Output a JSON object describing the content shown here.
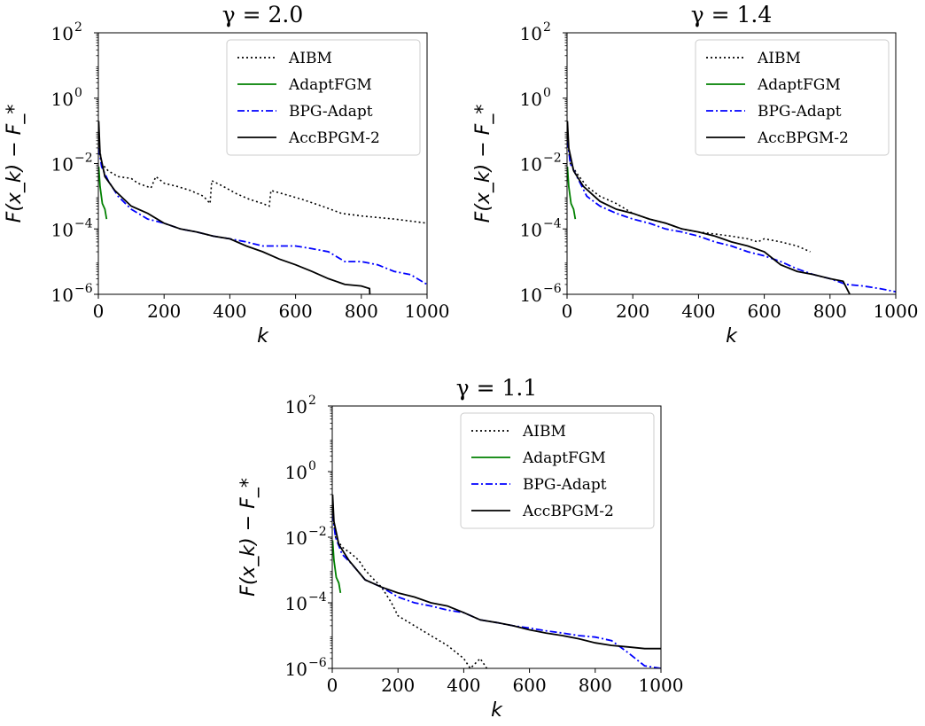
{
  "chart_data": [
    {
      "type": "line",
      "title": "γ = 2.0",
      "xlabel": "k",
      "ylabel": "F(x_k) − F_*",
      "xlim": [
        0,
        1000
      ],
      "ylim": [
        1e-06,
        100
      ],
      "yscale": "log",
      "x_ticks": [
        "0",
        "200",
        "400",
        "600",
        "800",
        "1000"
      ],
      "y_ticks": [
        {
          "base": "10",
          "exp": "2"
        },
        {
          "base": "10",
          "exp": "0"
        },
        {
          "base": "10",
          "exp": "−2"
        },
        {
          "base": "10",
          "exp": "−4"
        },
        {
          "base": "10",
          "exp": "−6"
        }
      ],
      "legend_position": "upper-right",
      "series": [
        {
          "name": "AIBM",
          "style": "dotted",
          "color": "#000000",
          "points": [
            [
              1,
              0.05
            ],
            [
              10,
              0.01
            ],
            [
              30,
              0.006
            ],
            [
              60,
              0.004
            ],
            [
              100,
              0.0035
            ],
            [
              120,
              0.0025
            ],
            [
              160,
              0.0018
            ],
            [
              175,
              0.004
            ],
            [
              200,
              0.0025
            ],
            [
              240,
              0.002
            ],
            [
              280,
              0.0015
            ],
            [
              320,
              0.001
            ],
            [
              340,
              0.0006
            ],
            [
              345,
              0.003
            ],
            [
              380,
              0.002
            ],
            [
              420,
              0.0012
            ],
            [
              460,
              0.0008
            ],
            [
              500,
              0.0006
            ],
            [
              520,
              0.0005
            ],
            [
              525,
              0.0015
            ],
            [
              560,
              0.0012
            ],
            [
              620,
              0.0008
            ],
            [
              680,
              0.0005
            ],
            [
              740,
              0.0003
            ],
            [
              800,
              0.00025
            ],
            [
              900,
              0.0002
            ],
            [
              1000,
              0.00015
            ]
          ]
        },
        {
          "name": "AdaptFGM",
          "style": "solid",
          "color": "#008000",
          "points": [
            [
              1,
              0.008
            ],
            [
              5,
              0.002
            ],
            [
              12,
              0.0006
            ],
            [
              20,
              0.0004
            ],
            [
              25,
              0.0002
            ]
          ]
        },
        {
          "name": "BPG-Adapt",
          "style": "dashdot",
          "color": "#0000ff",
          "points": [
            [
              1,
              0.03
            ],
            [
              10,
              0.008
            ],
            [
              30,
              0.003
            ],
            [
              60,
              0.001
            ],
            [
              100,
              0.0004
            ],
            [
              150,
              0.0002
            ],
            [
              200,
              0.00015
            ],
            [
              250,
              0.0001
            ],
            [
              300,
              8e-05
            ],
            [
              350,
              6e-05
            ],
            [
              400,
              5e-05
            ],
            [
              450,
              4e-05
            ],
            [
              500,
              3e-05
            ],
            [
              550,
              3e-05
            ],
            [
              600,
              3e-05
            ],
            [
              650,
              2.5e-05
            ],
            [
              700,
              2e-05
            ],
            [
              750,
              1e-05
            ],
            [
              800,
              1e-05
            ],
            [
              850,
              8e-06
            ],
            [
              900,
              5e-06
            ],
            [
              950,
              4e-06
            ],
            [
              1000,
              2e-06
            ]
          ]
        },
        {
          "name": "AccBPGM-2",
          "style": "solid",
          "color": "#000000",
          "points": [
            [
              1,
              0.2
            ],
            [
              5,
              0.02
            ],
            [
              20,
              0.004
            ],
            [
              50,
              0.0015
            ],
            [
              100,
              0.0005
            ],
            [
              150,
              0.0003
            ],
            [
              200,
              0.00015
            ],
            [
              250,
              0.0001
            ],
            [
              300,
              8e-05
            ],
            [
              350,
              6e-05
            ],
            [
              400,
              5e-05
            ],
            [
              450,
              3e-05
            ],
            [
              500,
              2e-05
            ],
            [
              550,
              1.2e-05
            ],
            [
              600,
              8e-06
            ],
            [
              650,
              5e-06
            ],
            [
              700,
              3e-06
            ],
            [
              750,
              2e-06
            ],
            [
              800,
              1.8e-06
            ],
            [
              825,
              1.5e-06
            ],
            [
              826,
              9e-07
            ]
          ]
        }
      ]
    },
    {
      "type": "line",
      "title": "γ = 1.4",
      "xlabel": "k",
      "ylabel": "F(x_k) − F_*",
      "xlim": [
        0,
        1000
      ],
      "ylim": [
        1e-06,
        100
      ],
      "yscale": "log",
      "x_ticks": [
        "0",
        "200",
        "400",
        "600",
        "800",
        "1000"
      ],
      "y_ticks": [
        {
          "base": "10",
          "exp": "2"
        },
        {
          "base": "10",
          "exp": "0"
        },
        {
          "base": "10",
          "exp": "−2"
        },
        {
          "base": "10",
          "exp": "−4"
        },
        {
          "base": "10",
          "exp": "−6"
        }
      ],
      "legend_position": "upper-right",
      "series": [
        {
          "name": "AIBM",
          "style": "dotted",
          "color": "#000000",
          "points": [
            [
              1,
              0.05
            ],
            [
              10,
              0.01
            ],
            [
              30,
              0.005
            ],
            [
              60,
              0.002
            ],
            [
              100,
              0.001
            ],
            [
              150,
              0.0006
            ],
            [
              200,
              0.0003
            ],
            [
              250,
              0.0002
            ],
            [
              300,
              0.00015
            ],
            [
              350,
              0.0001
            ],
            [
              400,
              8e-05
            ],
            [
              450,
              7e-05
            ],
            [
              500,
              6e-05
            ],
            [
              550,
              5e-05
            ],
            [
              580,
              4e-05
            ],
            [
              600,
              5e-05
            ],
            [
              650,
              4e-05
            ],
            [
              700,
              3e-05
            ],
            [
              740,
              2e-05
            ]
          ]
        },
        {
          "name": "AdaptFGM",
          "style": "solid",
          "color": "#008000",
          "points": [
            [
              1,
              0.008
            ],
            [
              5,
              0.002
            ],
            [
              12,
              0.0006
            ],
            [
              20,
              0.0004
            ],
            [
              25,
              0.0002
            ]
          ]
        },
        {
          "name": "BPG-Adapt",
          "style": "dashdot",
          "color": "#0000ff",
          "points": [
            [
              1,
              0.05
            ],
            [
              10,
              0.01
            ],
            [
              30,
              0.004
            ],
            [
              60,
              0.001
            ],
            [
              100,
              0.0005
            ],
            [
              150,
              0.0003
            ],
            [
              200,
              0.0002
            ],
            [
              250,
              0.00015
            ],
            [
              300,
              0.0001
            ],
            [
              350,
              8e-05
            ],
            [
              400,
              6e-05
            ],
            [
              450,
              4e-05
            ],
            [
              500,
              3e-05
            ],
            [
              550,
              2e-05
            ],
            [
              600,
              1.5e-05
            ],
            [
              650,
              1e-05
            ],
            [
              700,
              6e-06
            ],
            [
              750,
              4e-06
            ],
            [
              800,
              3e-06
            ],
            [
              850,
              2e-06
            ],
            [
              900,
              1.8e-06
            ],
            [
              950,
              1.5e-06
            ],
            [
              1000,
              1.2e-06
            ]
          ]
        },
        {
          "name": "AccBPGM-2",
          "style": "solid",
          "color": "#000000",
          "points": [
            [
              1,
              0.2
            ],
            [
              5,
              0.03
            ],
            [
              20,
              0.006
            ],
            [
              50,
              0.002
            ],
            [
              100,
              0.0007
            ],
            [
              150,
              0.0004
            ],
            [
              200,
              0.0003
            ],
            [
              250,
              0.0002
            ],
            [
              300,
              0.00015
            ],
            [
              350,
              0.0001
            ],
            [
              400,
              8e-05
            ],
            [
              450,
              6e-05
            ],
            [
              500,
              4e-05
            ],
            [
              550,
              3e-05
            ],
            [
              600,
              2e-05
            ],
            [
              650,
              8e-06
            ],
            [
              700,
              5e-06
            ],
            [
              750,
              4e-06
            ],
            [
              800,
              3e-06
            ],
            [
              840,
              2.5e-06
            ],
            [
              860,
              1e-06
            ]
          ]
        }
      ]
    },
    {
      "type": "line",
      "title": "γ = 1.1",
      "xlabel": "k",
      "ylabel": "F(x_k) − F_*",
      "xlim": [
        0,
        1000
      ],
      "ylim": [
        1e-06,
        100
      ],
      "yscale": "log",
      "x_ticks": [
        "0",
        "200",
        "400",
        "600",
        "800",
        "1000"
      ],
      "y_ticks": [
        {
          "base": "10",
          "exp": "2"
        },
        {
          "base": "10",
          "exp": "0"
        },
        {
          "base": "10",
          "exp": "−2"
        },
        {
          "base": "10",
          "exp": "−4"
        },
        {
          "base": "10",
          "exp": "−6"
        }
      ],
      "legend_position": "upper-right",
      "series": [
        {
          "name": "AIBM",
          "style": "dotted",
          "color": "#000000",
          "points": [
            [
              1,
              0.05
            ],
            [
              10,
              0.01
            ],
            [
              30,
              0.005
            ],
            [
              60,
              0.003
            ],
            [
              80,
              0.002
            ],
            [
              100,
              0.001
            ],
            [
              120,
              0.0006
            ],
            [
              150,
              0.0003
            ],
            [
              180,
              0.0001
            ],
            [
              200,
              4e-05
            ],
            [
              250,
              2e-05
            ],
            [
              300,
              1e-05
            ],
            [
              350,
              5e-06
            ],
            [
              400,
              2e-06
            ],
            [
              420,
              1e-06
            ],
            [
              450,
              2e-06
            ],
            [
              470,
              1e-06
            ]
          ]
        },
        {
          "name": "AdaptFGM",
          "style": "solid",
          "color": "#008000",
          "points": [
            [
              1,
              0.008
            ],
            [
              5,
              0.002
            ],
            [
              12,
              0.0006
            ],
            [
              20,
              0.0004
            ],
            [
              25,
              0.0002
            ]
          ]
        },
        {
          "name": "BPG-Adapt",
          "style": "dashdot",
          "color": "#0000ff",
          "points": [
            [
              1,
              0.05
            ],
            [
              10,
              0.01
            ],
            [
              30,
              0.003
            ],
            [
              60,
              0.0015
            ],
            [
              100,
              0.0005
            ],
            [
              150,
              0.0003
            ],
            [
              200,
              0.00015
            ],
            [
              250,
              0.0001
            ],
            [
              300,
              8e-05
            ],
            [
              350,
              6e-05
            ],
            [
              400,
              5e-05
            ],
            [
              450,
              3e-05
            ],
            [
              500,
              2.5e-05
            ],
            [
              550,
              2e-05
            ],
            [
              600,
              1.7e-05
            ],
            [
              650,
              1.4e-05
            ],
            [
              700,
              1.2e-05
            ],
            [
              750,
              1e-05
            ],
            [
              800,
              9e-06
            ],
            [
              850,
              7e-06
            ],
            [
              900,
              3e-06
            ],
            [
              950,
              1.2e-06
            ],
            [
              1000,
              8e-07
            ]
          ]
        },
        {
          "name": "AccBPGM-2",
          "style": "solid",
          "color": "#000000",
          "points": [
            [
              1,
              0.2
            ],
            [
              5,
              0.03
            ],
            [
              20,
              0.006
            ],
            [
              50,
              0.002
            ],
            [
              100,
              0.0005
            ],
            [
              150,
              0.0003
            ],
            [
              200,
              0.0002
            ],
            [
              250,
              0.00015
            ],
            [
              300,
              0.0001
            ],
            [
              350,
              8e-05
            ],
            [
              400,
              5e-05
            ],
            [
              450,
              3e-05
            ],
            [
              500,
              2.5e-05
            ],
            [
              550,
              2e-05
            ],
            [
              600,
              1.5e-05
            ],
            [
              650,
              1.2e-05
            ],
            [
              700,
              1e-05
            ],
            [
              750,
              8e-06
            ],
            [
              800,
              6e-06
            ],
            [
              850,
              5e-06
            ],
            [
              900,
              4.5e-06
            ],
            [
              950,
              4e-06
            ],
            [
              1000,
              4e-06
            ]
          ]
        }
      ]
    }
  ]
}
